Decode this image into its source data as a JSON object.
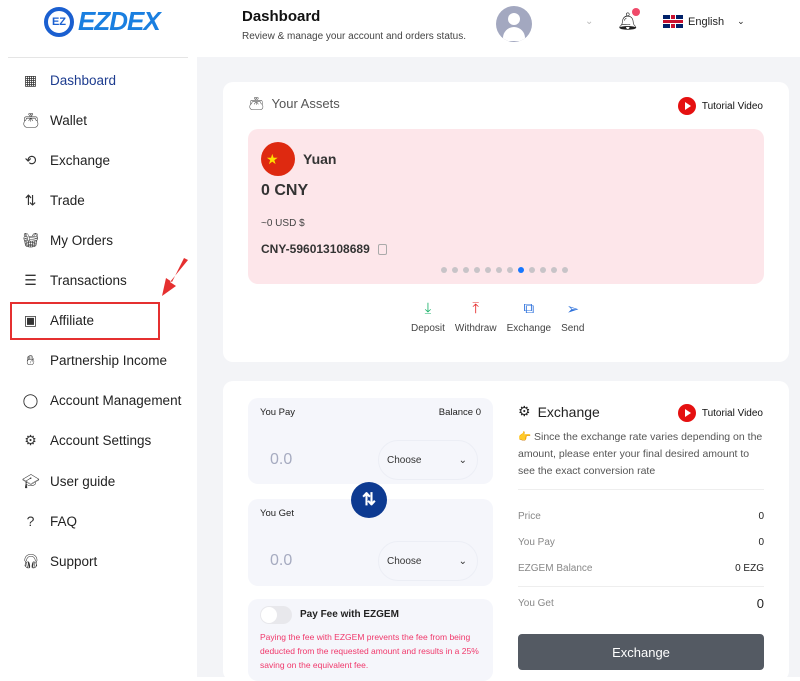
{
  "header": {
    "logo": "EZDEX",
    "logo_badge": "EZ",
    "title": "Dashboard",
    "subtitle": "Review & manage your account and orders status.",
    "language": "English"
  },
  "sidebar": {
    "items": [
      {
        "label": "Dashboard",
        "icon": "grid-icon"
      },
      {
        "label": "Wallet",
        "icon": "wallet-icon"
      },
      {
        "label": "Exchange",
        "icon": "exchange-icon"
      },
      {
        "label": "Trade",
        "icon": "trade-icon"
      },
      {
        "label": "My Orders",
        "icon": "basket-icon"
      },
      {
        "label": "Transactions",
        "icon": "transactions-icon"
      },
      {
        "label": "Affiliate",
        "icon": "affiliate-icon"
      },
      {
        "label": "Partnership Income",
        "icon": "hand-coin-icon"
      },
      {
        "label": "Account Management",
        "icon": "user-icon"
      },
      {
        "label": "Account Settings",
        "icon": "gear-icon"
      },
      {
        "label": "User guide",
        "icon": "graduation-cap-icon"
      },
      {
        "label": "FAQ",
        "icon": "question-icon"
      },
      {
        "label": "Support",
        "icon": "headset-icon"
      }
    ],
    "active": "Dashboard",
    "highlighted": "Affiliate"
  },
  "assets": {
    "title": "Your Assets",
    "tutorial": "Tutorial Video",
    "currency_name": "Yuan",
    "amount": "0 CNY",
    "usd": "~0 USD $",
    "account": "CNY-596013108689",
    "carousel_count": 12,
    "carousel_active": 7,
    "actions": [
      {
        "label": "Deposit",
        "color": "#1db36b"
      },
      {
        "label": "Withdraw",
        "color": "#e52a2a"
      },
      {
        "label": "Exchange",
        "color": "#2a6fdb"
      },
      {
        "label": "Send",
        "color": "#2a6fdb"
      }
    ]
  },
  "exchange": {
    "you_pay": "You Pay",
    "balance": "Balance 0",
    "pay_value": "0.0",
    "choose": "Choose",
    "you_get": "You Get",
    "get_value": "0.0",
    "fee_toggle": "Pay Fee with EZGEM",
    "fee_toggle_on": false,
    "fee_desc": "Paying the fee with EZGEM prevents the fee from being deducted from the requested amount and results in a 25% saving on the equivalent fee.",
    "title": "Exchange",
    "tutorial": "Tutorial Video",
    "note": "Since the exchange rate varies depending on the amount, please enter your final desired amount to see the exact conversion rate",
    "rows": [
      {
        "label": "Price",
        "value": "0"
      },
      {
        "label": "You Pay",
        "value": "0"
      },
      {
        "label": "EZGEM Balance",
        "value": "0 EZG"
      },
      {
        "label": "You Get",
        "value": "0"
      }
    ],
    "button": "Exchange"
  },
  "colors": {
    "brand": "#1d3c8f",
    "accent": "#0d3a91",
    "highlight": "#e53030"
  }
}
